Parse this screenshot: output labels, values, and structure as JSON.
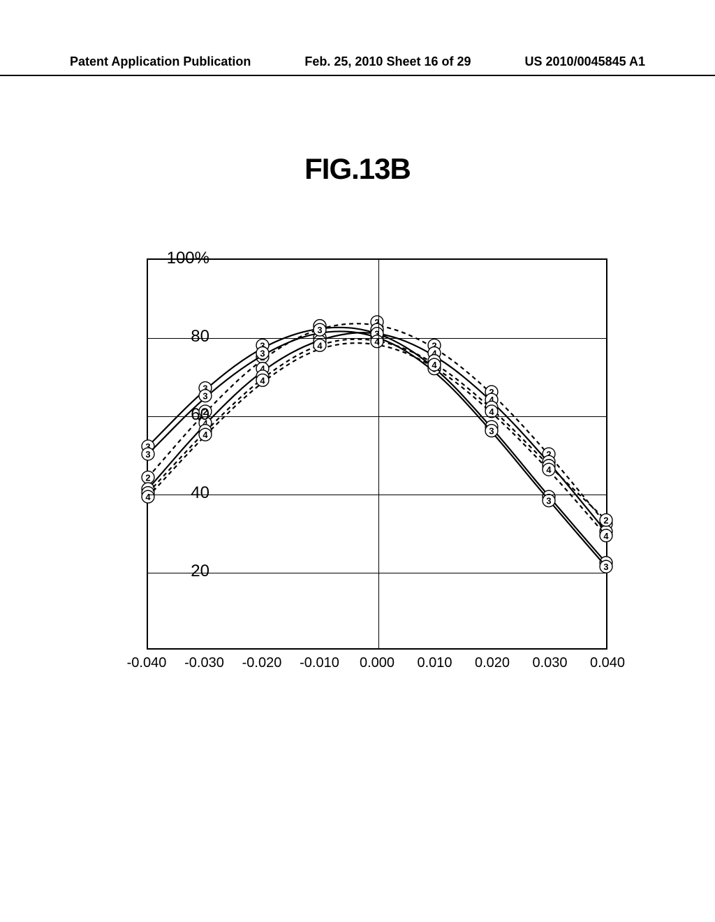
{
  "header": {
    "left": "Patent Application Publication",
    "center": "Feb. 25, 2010  Sheet 16 of 29",
    "right": "US 2010/0045845 A1"
  },
  "figure": {
    "title": "FIG.13B"
  },
  "chart": {
    "type": "line",
    "background_color": "#ffffff",
    "border_color": "#000000",
    "grid_color": "#000000",
    "xlim": [
      -0.04,
      0.04
    ],
    "ylim": [
      0,
      100
    ],
    "xticks": [
      -0.04,
      -0.03,
      -0.02,
      -0.01,
      0.0,
      0.01,
      0.02,
      0.03,
      0.04
    ],
    "xtick_labels": [
      "-0.040",
      "-0.030",
      "-0.020",
      "-0.010",
      "0.000",
      "0.010",
      "0.020",
      "0.030",
      "0.040"
    ],
    "yticks": [
      20,
      40,
      60,
      80,
      100
    ],
    "ytick_labels": [
      "20",
      "40",
      "60",
      "80",
      "100%"
    ],
    "ylabel_fontsize": 24,
    "xlabel_fontsize": 20,
    "axis_linewidth": 2.5,
    "grid_linewidth": 1.5,
    "curve_linewidth": 2.2,
    "marker_radius_outer": 9,
    "marker_radius_inner": 5,
    "series": [
      {
        "label": "2",
        "dash": "6,5",
        "color": "#000000",
        "x": [
          -0.04,
          -0.03,
          -0.02,
          -0.01,
          0.0,
          0.01,
          0.02,
          0.03,
          0.04
        ],
        "y": [
          44,
          61,
          75,
          83,
          84,
          78,
          66,
          50,
          32
        ]
      },
      {
        "label": "3",
        "dash": "none",
        "color": "#000000",
        "x": [
          -0.04,
          -0.03,
          -0.02,
          -0.01,
          0.0,
          0.01,
          0.02,
          0.03,
          0.04
        ],
        "y": [
          52,
          67,
          78,
          83,
          82,
          73,
          57,
          39,
          22
        ]
      },
      {
        "label": "4",
        "dash": "none",
        "color": "#000000",
        "x": [
          -0.04,
          -0.03,
          -0.02,
          -0.01,
          0.0,
          0.01,
          0.02,
          0.03,
          0.04
        ],
        "y": [
          41,
          58,
          72,
          80,
          82,
          76,
          64,
          48,
          30
        ]
      },
      {
        "label": "2",
        "dash": "6,5",
        "color": "#000000",
        "x": [
          -0.04,
          -0.03,
          -0.02,
          -0.01,
          0.0,
          0.01,
          0.02,
          0.03,
          0.04
        ],
        "y": [
          40,
          56,
          70,
          79,
          80,
          74,
          62,
          47,
          33
        ]
      },
      {
        "label": "3",
        "dash": "none",
        "color": "#000000",
        "x": [
          -0.04,
          -0.03,
          -0.02,
          -0.01,
          0.0,
          0.01,
          0.02,
          0.03,
          0.04
        ],
        "y": [
          50,
          65,
          76,
          82,
          81,
          72,
          56,
          38,
          21
        ]
      },
      {
        "label": "4",
        "dash": "6,5",
        "color": "#000000",
        "x": [
          -0.04,
          -0.03,
          -0.02,
          -0.01,
          0.0,
          0.01,
          0.02,
          0.03,
          0.04
        ],
        "y": [
          39,
          55,
          69,
          78,
          79,
          73,
          61,
          46,
          29
        ]
      }
    ]
  }
}
